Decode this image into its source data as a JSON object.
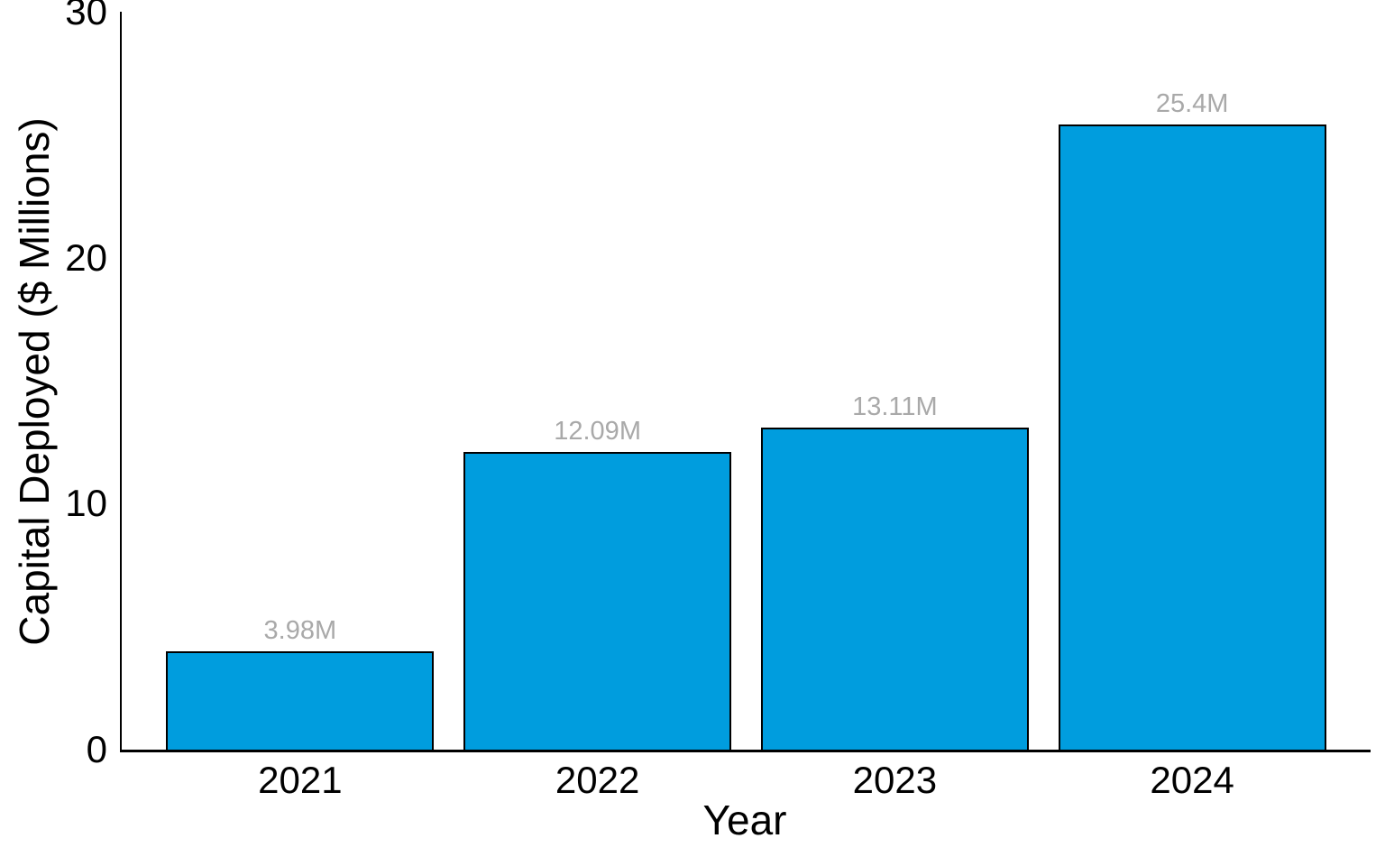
{
  "chart_data": {
    "type": "bar",
    "title": "",
    "categories": [
      "2021",
      "2022",
      "2023",
      "2024"
    ],
    "values": [
      3.98,
      12.09,
      13.11,
      25.4
    ],
    "bar_labels": [
      "3.98M",
      "12.09M",
      "13.11M",
      "25.4M"
    ],
    "xlabel": "Year",
    "ylabel": "Capital Deployed ($ Millions)",
    "ylim": [
      0,
      30
    ],
    "yticks": [
      0,
      10,
      20,
      30
    ],
    "grid": false,
    "legend": false,
    "axes_shown": [
      "left",
      "bottom"
    ],
    "colors": {
      "bar_fill": "#009dde",
      "bar_edge": "#000000",
      "bar_value_label": "#a9a9a9",
      "axis_line": "#000000",
      "tick_text": "#000000",
      "background": "#ffffff"
    },
    "layout": {
      "bar_slot_fraction": 0.9,
      "x_edge_padding_units": 0.6
    }
  }
}
